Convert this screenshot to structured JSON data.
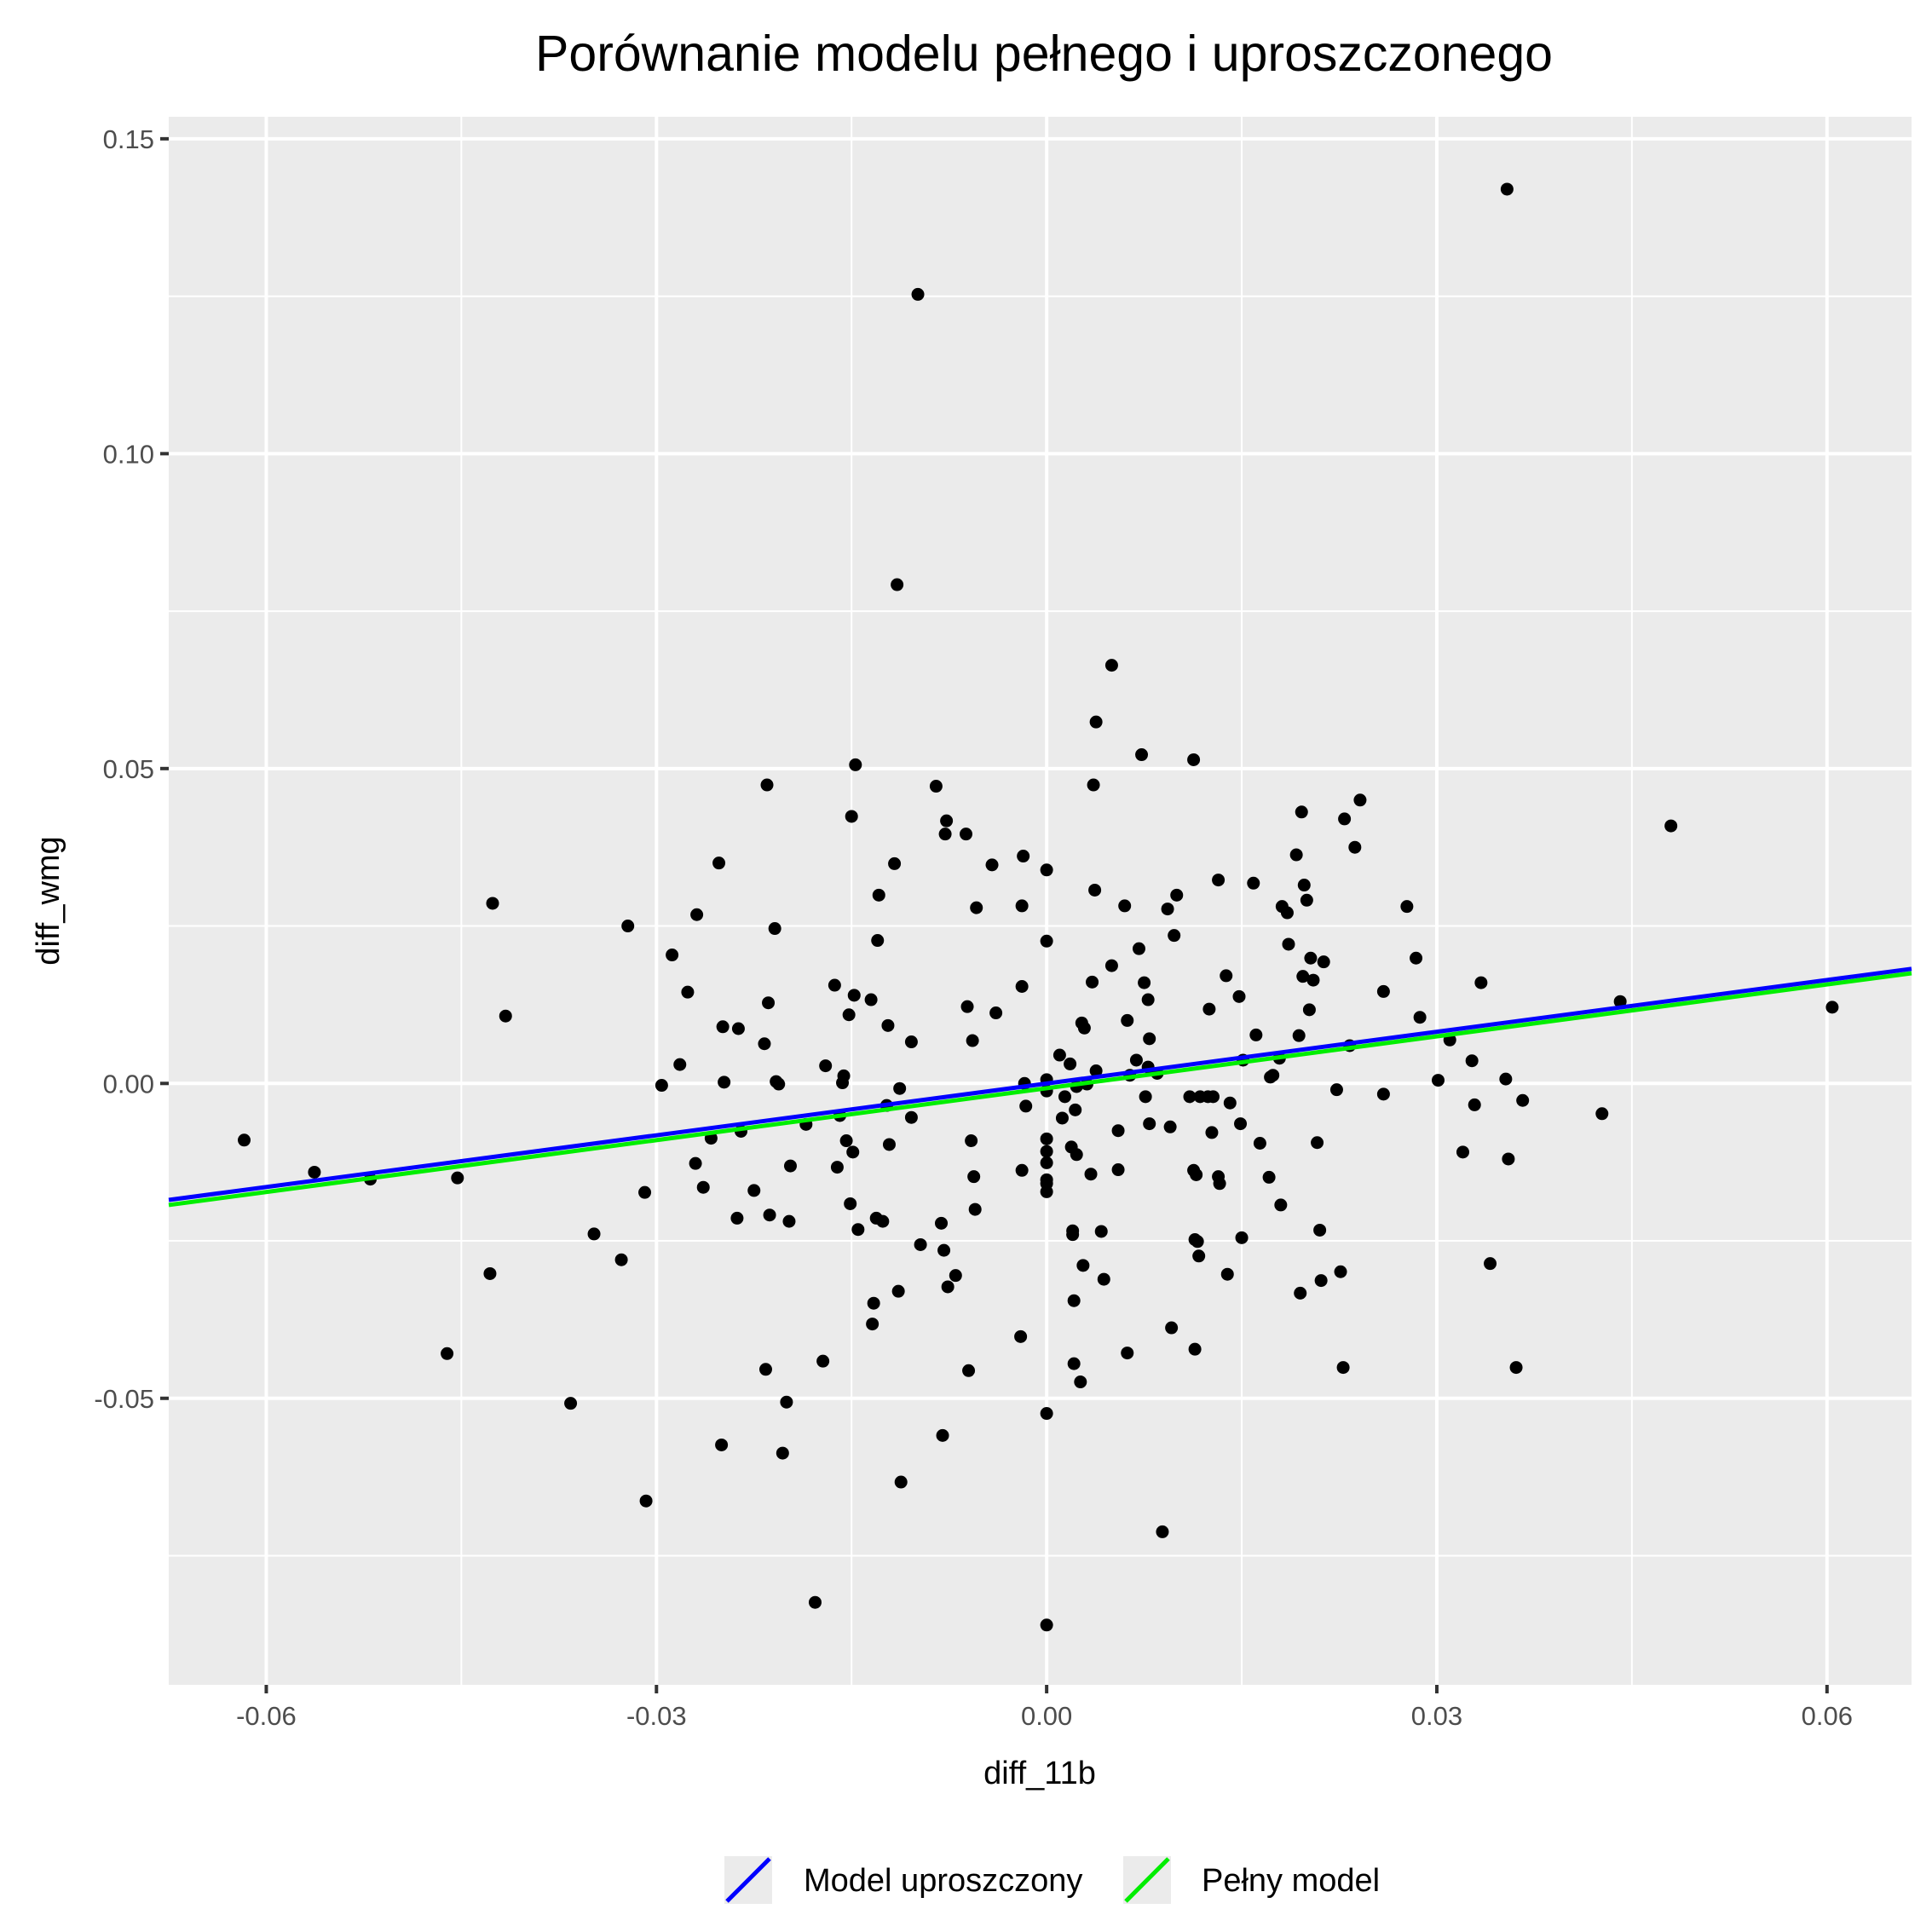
{
  "chart_data": {
    "type": "scatter",
    "title": "Porównanie modelu pełnego i uproszczonego",
    "xlabel": "diff_11b",
    "ylabel": "diff_wmg",
    "xlim": [
      -0.0675,
      0.0665
    ],
    "ylim": [
      -0.0955,
      0.1535
    ],
    "xticks": [
      -0.06,
      -0.03,
      0.0,
      0.03,
      0.06
    ],
    "xtick_labels": [
      "-0.06",
      "-0.03",
      "0.00",
      "0.03",
      "0.06"
    ],
    "yticks": [
      -0.05,
      0.0,
      0.05,
      0.1,
      0.15
    ],
    "ytick_labels": [
      "-0.05",
      "0.00",
      "0.05",
      "0.10",
      "0.15"
    ],
    "grid": true,
    "legend_position": "bottom",
    "point_color": "#000000",
    "panel_background": "#ebebeb",
    "grid_color": "#ffffff",
    "points": [
      [
        -0.0617,
        -0.009
      ],
      [
        -0.0563,
        -0.0141
      ],
      [
        -0.052,
        -0.0152
      ],
      [
        -0.0453,
        -0.015
      ],
      [
        -0.0461,
        -0.0429
      ],
      [
        -0.0426,
        0.0286
      ],
      [
        -0.0416,
        0.0107
      ],
      [
        -0.0428,
        -0.0302
      ],
      [
        -0.0366,
        -0.0508
      ],
      [
        -0.0348,
        -0.0239
      ],
      [
        -0.0327,
        -0.028
      ],
      [
        -0.0322,
        0.025
      ],
      [
        -0.0309,
        -0.0173
      ],
      [
        -0.0308,
        -0.0663
      ],
      [
        -0.0296,
        -0.0003
      ],
      [
        -0.0288,
        0.0204
      ],
      [
        -0.0282,
        0.003
      ],
      [
        -0.0276,
        0.0145
      ],
      [
        -0.027,
        -0.0127
      ],
      [
        -0.0269,
        0.0268
      ],
      [
        -0.0264,
        -0.0165
      ],
      [
        -0.0258,
        -0.0087
      ],
      [
        -0.0252,
        0.035
      ],
      [
        -0.025,
        -0.0574
      ],
      [
        -0.0249,
        0.009
      ],
      [
        -0.0248,
        0.0002
      ],
      [
        -0.0238,
        -0.0214
      ],
      [
        -0.0237,
        0.0087
      ],
      [
        -0.0235,
        -0.0076
      ],
      [
        -0.0225,
        -0.017
      ],
      [
        -0.0217,
        0.0063
      ],
      [
        -0.0216,
        -0.0454
      ],
      [
        -0.0215,
        0.0474
      ],
      [
        -0.0214,
        0.0128
      ],
      [
        -0.0213,
        -0.0209
      ],
      [
        -0.0209,
        0.0246
      ],
      [
        -0.0208,
        0.0003
      ],
      [
        -0.0206,
        -0.0001
      ],
      [
        -0.0203,
        -0.0587
      ],
      [
        -0.02,
        -0.0506
      ],
      [
        -0.0198,
        -0.0219
      ],
      [
        -0.0197,
        -0.0131
      ],
      [
        -0.0185,
        -0.0065
      ],
      [
        -0.0178,
        -0.0824
      ],
      [
        -0.0172,
        -0.0441
      ],
      [
        -0.017,
        0.0028
      ],
      [
        -0.0163,
        0.0156
      ],
      [
        -0.0161,
        -0.0133
      ],
      [
        -0.0159,
        -0.0051
      ],
      [
        -0.0157,
        0.0001
      ],
      [
        -0.0156,
        0.0012
      ],
      [
        -0.0154,
        -0.0091
      ],
      [
        -0.0152,
        0.0109
      ],
      [
        -0.0151,
        -0.0191
      ],
      [
        -0.015,
        0.0424
      ],
      [
        -0.0149,
        -0.0109
      ],
      [
        -0.0148,
        0.014
      ],
      [
        -0.0147,
        0.0506
      ],
      [
        -0.0145,
        -0.0232
      ],
      [
        -0.0135,
        0.0133
      ],
      [
        -0.0134,
        -0.0382
      ],
      [
        -0.0133,
        -0.0349
      ],
      [
        -0.0131,
        -0.0214
      ],
      [
        -0.013,
        0.0227
      ],
      [
        -0.0129,
        0.0299
      ],
      [
        -0.0126,
        -0.0219
      ],
      [
        -0.0123,
        -0.0035
      ],
      [
        -0.0122,
        0.0092
      ],
      [
        -0.0121,
        -0.0097
      ],
      [
        -0.0117,
        0.0349
      ],
      [
        -0.0114,
        -0.033
      ],
      [
        -0.0113,
        -0.0008
      ],
      [
        -0.0112,
        -0.0633
      ],
      [
        -0.0115,
        0.0792
      ],
      [
        -0.0104,
        0.0066
      ],
      [
        -0.0104,
        -0.0054
      ],
      [
        -0.0099,
        0.1253
      ],
      [
        -0.0097,
        -0.0256
      ],
      [
        -0.0085,
        0.0472
      ],
      [
        -0.0081,
        -0.0222
      ],
      [
        -0.008,
        -0.0559
      ],
      [
        -0.0079,
        -0.0265
      ],
      [
        -0.0078,
        0.0396
      ],
      [
        -0.0077,
        0.0417
      ],
      [
        -0.0076,
        -0.0323
      ],
      [
        -0.007,
        -0.0305
      ],
      [
        -0.0062,
        0.0396
      ],
      [
        -0.0061,
        0.0122
      ],
      [
        -0.006,
        -0.0456
      ],
      [
        -0.0058,
        -0.0091
      ],
      [
        -0.0057,
        0.0068
      ],
      [
        -0.0056,
        -0.0148
      ],
      [
        -0.0055,
        -0.02
      ],
      [
        -0.0054,
        0.0279
      ],
      [
        -0.0042,
        0.0347
      ],
      [
        -0.0039,
        0.0112
      ],
      [
        -0.002,
        -0.0402
      ],
      [
        -0.0019,
        -0.0138
      ],
      [
        -0.0019,
        0.0154
      ],
      [
        -0.0019,
        0.0282
      ],
      [
        -0.0018,
        0.0361
      ],
      [
        -0.0017,
        0.0
      ],
      [
        -0.0016,
        -0.0036
      ],
      [
        0.0,
        -0.0524
      ],
      [
        0.0,
        -0.086
      ],
      [
        0.0,
        -0.0172
      ],
      [
        0.0,
        -0.0159
      ],
      [
        0.0,
        -0.0153
      ],
      [
        0.0,
        -0.0126
      ],
      [
        0.0,
        -0.0108
      ],
      [
        0.0,
        -0.0088
      ],
      [
        0.0,
        -0.0012
      ],
      [
        0.0,
        0.0006
      ],
      [
        0.0,
        0.0226
      ],
      [
        0.0,
        0.0339
      ],
      [
        0.001,
        0.0045
      ],
      [
        0.0012,
        -0.0055
      ],
      [
        0.0014,
        -0.0021
      ],
      [
        0.0018,
        0.0031
      ],
      [
        0.0019,
        -0.0101
      ],
      [
        0.002,
        -0.0234
      ],
      [
        0.002,
        -0.024
      ],
      [
        0.0021,
        -0.0445
      ],
      [
        0.0021,
        -0.0345
      ],
      [
        0.0022,
        -0.0042
      ],
      [
        0.0023,
        -0.0113
      ],
      [
        0.0023,
        -0.0005
      ],
      [
        0.0026,
        -0.0474
      ],
      [
        0.0027,
        0.0096
      ],
      [
        0.0028,
        -0.0289
      ],
      [
        0.0029,
        0.0088
      ],
      [
        0.0031,
        -0.0001
      ],
      [
        0.0034,
        -0.0144
      ],
      [
        0.0035,
        0.0161
      ],
      [
        0.0036,
        0.0474
      ],
      [
        0.0037,
        0.0307
      ],
      [
        0.0038,
        0.0574
      ],
      [
        0.0038,
        0.002
      ],
      [
        0.0042,
        -0.0235
      ],
      [
        0.0044,
        -0.0311
      ],
      [
        0.005,
        0.0187
      ],
      [
        0.005,
        0.0664
      ],
      [
        0.0055,
        -0.0137
      ],
      [
        0.0055,
        -0.0075
      ],
      [
        0.006,
        0.0282
      ],
      [
        0.0062,
        0.01
      ],
      [
        0.0062,
        -0.0428
      ],
      [
        0.0064,
        0.0013
      ],
      [
        0.0069,
        0.0037
      ],
      [
        0.0071,
        0.0214
      ],
      [
        0.0073,
        0.0522
      ],
      [
        0.0075,
        0.016
      ],
      [
        0.0076,
        -0.0021
      ],
      [
        0.0078,
        0.0026
      ],
      [
        0.0078,
        0.0133
      ],
      [
        0.0079,
        0.0071
      ],
      [
        0.0079,
        -0.0064
      ],
      [
        0.0085,
        0.0016
      ],
      [
        0.0089,
        -0.0712
      ],
      [
        0.0093,
        0.0277
      ],
      [
        0.0095,
        -0.0069
      ],
      [
        0.0096,
        -0.0388
      ],
      [
        0.0098,
        0.0235
      ],
      [
        0.01,
        0.0299
      ],
      [
        0.011,
        -0.0021
      ],
      [
        0.0113,
        -0.0138
      ],
      [
        0.0113,
        0.0514
      ],
      [
        0.0114,
        -0.0422
      ],
      [
        0.0114,
        -0.0248
      ],
      [
        0.0115,
        -0.0145
      ],
      [
        0.0116,
        -0.0251
      ],
      [
        0.0117,
        -0.0274
      ],
      [
        0.0118,
        -0.0021
      ],
      [
        0.0124,
        -0.0021
      ],
      [
        0.0125,
        0.0118
      ],
      [
        0.0127,
        -0.0078
      ],
      [
        0.0128,
        -0.0021
      ],
      [
        0.0132,
        0.0323
      ],
      [
        0.0132,
        -0.0148
      ],
      [
        0.0133,
        -0.0159
      ],
      [
        0.0138,
        0.0171
      ],
      [
        0.0139,
        -0.0303
      ],
      [
        0.0141,
        -0.0031
      ],
      [
        0.0148,
        0.0138
      ],
      [
        0.0149,
        -0.0064
      ],
      [
        0.015,
        -0.0245
      ],
      [
        0.0151,
        0.0037
      ],
      [
        0.0159,
        0.0318
      ],
      [
        0.0161,
        0.0077
      ],
      [
        0.0164,
        -0.0095
      ],
      [
        0.0171,
        -0.0149
      ],
      [
        0.0172,
        0.001
      ],
      [
        0.0174,
        0.0013
      ],
      [
        0.0179,
        0.004
      ],
      [
        0.018,
        -0.0193
      ],
      [
        0.0181,
        0.0281
      ],
      [
        0.0185,
        0.0271
      ],
      [
        0.0186,
        0.0221
      ],
      [
        0.0192,
        0.0363
      ],
      [
        0.0194,
        0.0076
      ],
      [
        0.0195,
        -0.0333
      ],
      [
        0.0196,
        0.0431
      ],
      [
        0.0197,
        0.017
      ],
      [
        0.0198,
        0.0315
      ],
      [
        0.02,
        0.0291
      ],
      [
        0.0202,
        0.0117
      ],
      [
        0.0203,
        0.0199
      ],
      [
        0.0205,
        0.0164
      ],
      [
        0.0208,
        -0.0094
      ],
      [
        0.021,
        -0.0233
      ],
      [
        0.0211,
        -0.0313
      ],
      [
        0.0213,
        0.0193
      ],
      [
        0.0223,
        -0.001
      ],
      [
        0.0226,
        -0.0299
      ],
      [
        0.0228,
        -0.0451
      ],
      [
        0.0229,
        0.042
      ],
      [
        0.0233,
        0.006
      ],
      [
        0.0237,
        0.0375
      ],
      [
        0.0241,
        0.045
      ],
      [
        0.0259,
        0.0146
      ],
      [
        0.0259,
        -0.0017
      ],
      [
        0.0277,
        0.0281
      ],
      [
        0.0284,
        0.0199
      ],
      [
        0.0287,
        0.0105
      ],
      [
        0.0301,
        0.0005
      ],
      [
        0.031,
        0.0069
      ],
      [
        0.032,
        -0.0109
      ],
      [
        0.0327,
        0.0036
      ],
      [
        0.0329,
        -0.0034
      ],
      [
        0.0334,
        0.016
      ],
      [
        0.0341,
        -0.0286
      ],
      [
        0.0353,
        0.0007
      ],
      [
        0.0354,
        0.142
      ],
      [
        0.0355,
        -0.012
      ],
      [
        0.0361,
        -0.0451
      ],
      [
        0.0366,
        -0.0027
      ],
      [
        0.0427,
        -0.0048
      ],
      [
        0.0441,
        0.013
      ],
      [
        0.048,
        0.0409
      ],
      [
        0.0604,
        0.0121
      ]
    ],
    "series": [
      {
        "name": "Model uproszczony",
        "color": "#0000ff",
        "x": [
          -0.0675,
          0.0665
        ],
        "y": [
          -0.0185,
          0.0182
        ]
      },
      {
        "name": "Pełny model",
        "color": "#00ee00",
        "x": [
          -0.0675,
          0.0665
        ],
        "y": [
          -0.0193,
          0.0175
        ]
      }
    ]
  }
}
